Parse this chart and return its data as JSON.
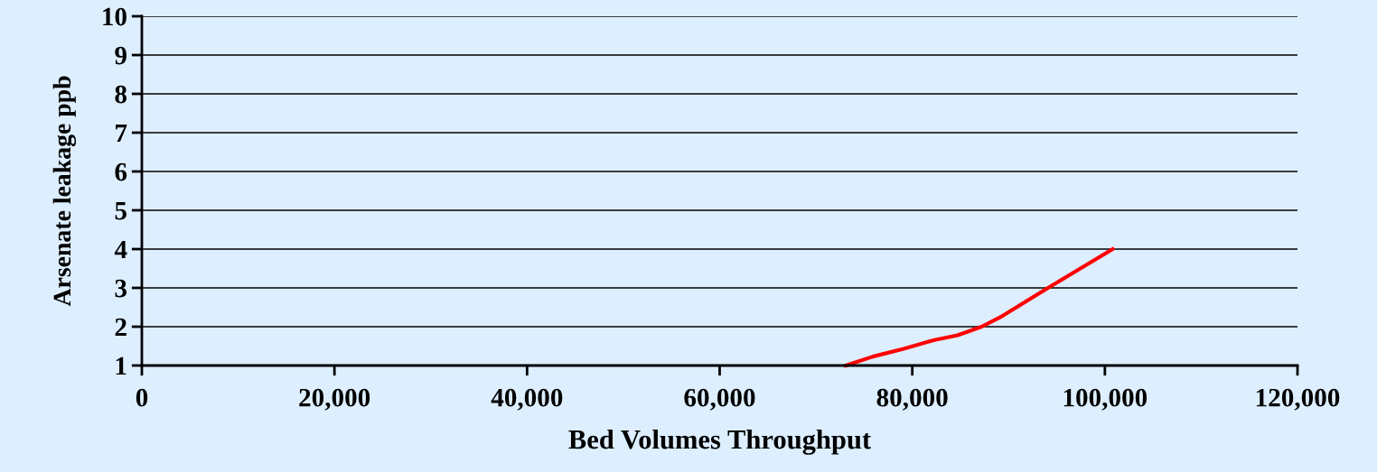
{
  "chart_data": {
    "type": "line",
    "xlabel": "Bed Volumes Throughput",
    "ylabel": "Arsenate leakage ppb",
    "x": [
      73100,
      75900,
      79100,
      82200,
      84700,
      87200,
      89100,
      94100,
      100800
    ],
    "series": [
      {
        "color": "#ff0000",
        "values": [
          1.0,
          1.23,
          1.43,
          1.65,
          1.78,
          2.0,
          2.24,
          3.0,
          4.0
        ]
      }
    ],
    "xlim": [
      0,
      120000
    ],
    "xticks": [
      0,
      {
        "value": 20000,
        "label": "20,000"
      },
      {
        "value": 40000,
        "label": "40,000"
      },
      {
        "value": 60000,
        "label": "60,000"
      },
      {
        "value": 80000,
        "label": "80,000"
      },
      {
        "value": 100000,
        "label": "100,000"
      },
      {
        "value": 120000,
        "label": "120,000"
      }
    ],
    "ylim": [
      1,
      10
    ],
    "yticks": [
      1,
      2,
      3,
      4,
      5,
      6,
      7,
      8,
      9,
      10
    ],
    "grid": "y",
    "marker": "none",
    "line_style": "solid"
  }
}
